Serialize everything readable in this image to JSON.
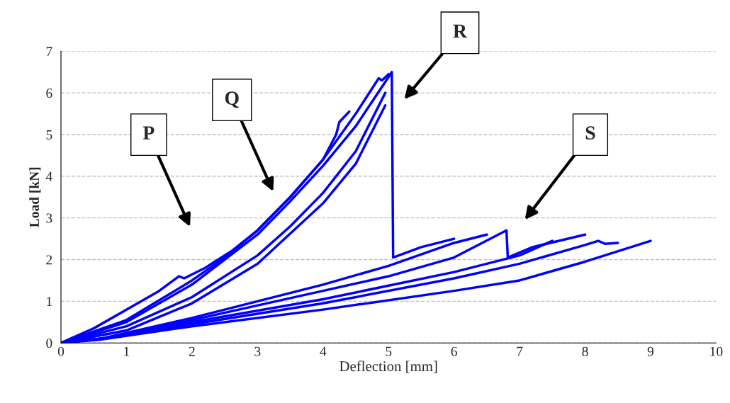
{
  "chart_data": {
    "type": "line",
    "xlabel": "Deflection [mm]",
    "ylabel": "Load [kN]",
    "xlim": [
      0,
      10
    ],
    "ylim": [
      0,
      7
    ],
    "xticks": [
      0,
      1,
      2,
      3,
      4,
      5,
      6,
      7,
      8,
      9,
      10
    ],
    "yticks": [
      0,
      1,
      2,
      3,
      4,
      5,
      6,
      7
    ],
    "grid": "y",
    "legend": false,
    "marker": "none",
    "line_style": "solid",
    "series": [
      {
        "color": "#0000ff",
        "x": [
          0,
          0.5,
          1,
          1.5,
          1.8,
          1.88,
          2.2,
          2.6,
          3,
          3.5,
          4,
          4.2,
          4.25,
          4.4
        ],
        "values": [
          0,
          0.35,
          0.8,
          1.25,
          1.6,
          1.55,
          1.8,
          2.2,
          2.7,
          3.5,
          4.4,
          5.0,
          5.3,
          5.55
        ]
      },
      {
        "color": "#0000ff",
        "x": [
          0,
          1,
          2,
          2.5,
          3,
          3.5,
          4,
          4.5,
          4.85,
          4.9,
          5.0
        ],
        "values": [
          0,
          0.55,
          1.5,
          2.05,
          2.7,
          3.5,
          4.4,
          5.5,
          6.35,
          6.3,
          6.45
        ]
      },
      {
        "color": "#0000ff",
        "x": [
          0,
          1,
          2,
          3,
          3.5,
          4,
          4.5,
          5.05,
          5.07,
          5.5,
          6
        ],
        "values": [
          0,
          0.5,
          1.4,
          2.6,
          3.4,
          4.25,
          5.2,
          6.5,
          2.05,
          2.3,
          2.5
        ]
      },
      {
        "color": "#0000ff",
        "x": [
          0,
          1,
          2,
          3,
          3.5,
          4,
          4.5,
          4.95
        ],
        "values": [
          0,
          0.4,
          1.1,
          2.1,
          2.8,
          3.6,
          4.6,
          6.0
        ]
      },
      {
        "color": "#0000ff",
        "x": [
          0,
          1,
          2,
          3,
          4,
          4.5,
          4.95
        ],
        "values": [
          0,
          0.3,
          0.95,
          1.9,
          3.35,
          4.3,
          5.7
        ]
      },
      {
        "color": "#0000ff",
        "x": [
          0,
          0.6,
          2,
          4,
          5,
          6,
          6.8,
          6.82,
          7.2,
          8
        ],
        "values": [
          0,
          0.1,
          0.55,
          1.25,
          1.6,
          2.05,
          2.7,
          2.05,
          2.3,
          2.6
        ]
      },
      {
        "color": "#0000ff",
        "x": [
          0,
          0.6,
          2,
          4,
          5,
          6,
          6.5
        ],
        "values": [
          0,
          0.1,
          0.6,
          1.4,
          1.85,
          2.4,
          2.6
        ]
      },
      {
        "color": "#0000ff",
        "x": [
          0,
          0.6,
          2,
          4,
          6,
          7,
          7.5
        ],
        "values": [
          0,
          0.1,
          0.5,
          1.05,
          1.7,
          2.1,
          2.45
        ]
      },
      {
        "color": "#0000ff",
        "x": [
          0,
          0.6,
          2,
          4,
          6,
          7,
          8,
          8.2,
          8.3,
          8.5
        ],
        "values": [
          0,
          0.1,
          0.45,
          0.95,
          1.55,
          1.9,
          2.35,
          2.45,
          2.38,
          2.4
        ]
      },
      {
        "color": "#0000ff",
        "x": [
          0,
          0.6,
          2,
          4,
          6,
          7,
          8,
          9
        ],
        "values": [
          0,
          0.08,
          0.4,
          0.8,
          1.25,
          1.5,
          1.95,
          2.45
        ]
      }
    ],
    "annotations": [
      "P",
      "Q",
      "R",
      "S"
    ]
  }
}
